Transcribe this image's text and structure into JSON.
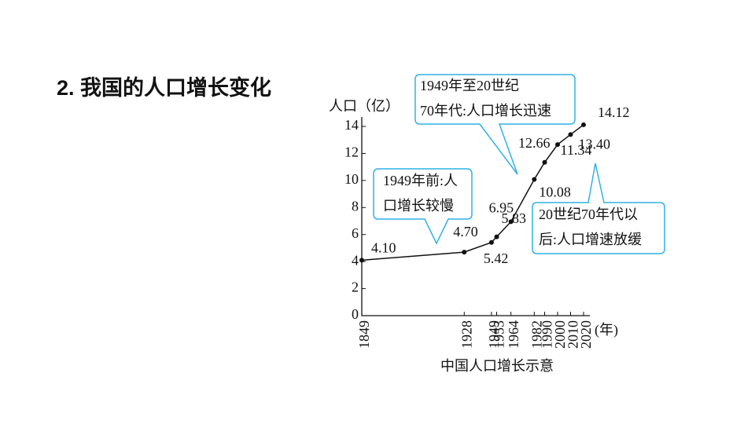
{
  "title": "2. 我国的人口增长变化",
  "chart_data": {
    "type": "line",
    "y_label": "人口（亿）",
    "x_label": "(年)",
    "caption": "中国人口增长示意",
    "x": [
      1849,
      1928,
      1949,
      1953,
      1964,
      1982,
      1990,
      2000,
      2010,
      2020
    ],
    "values": [
      4.1,
      4.7,
      5.42,
      5.83,
      6.95,
      10.08,
      11.34,
      12.66,
      13.4,
      14.12
    ],
    "value_labels": [
      "4.10",
      "4.70",
      "5.42",
      "5.83",
      "6.95",
      "10.08",
      "11.34",
      "12.66",
      "13.40",
      "14.12"
    ],
    "color": "#111111",
    "xlim": [
      1849,
      2020
    ],
    "xticks": [
      1849,
      1928,
      1949,
      1953,
      1964,
      1982,
      1990,
      2000,
      2010,
      2020
    ],
    "ylim": [
      0,
      14
    ],
    "yticks": [
      0,
      2,
      4,
      6,
      8,
      10,
      12,
      14
    ],
    "annotations": [
      {
        "lines": [
          "1949年至20世纪",
          "70年代:人口增长迅速"
        ]
      },
      {
        "lines": [
          "1949年前:人",
          "口增长较慢"
        ]
      },
      {
        "lines": [
          "20世纪70年代以",
          "后:人口增速放缓"
        ]
      }
    ]
  }
}
